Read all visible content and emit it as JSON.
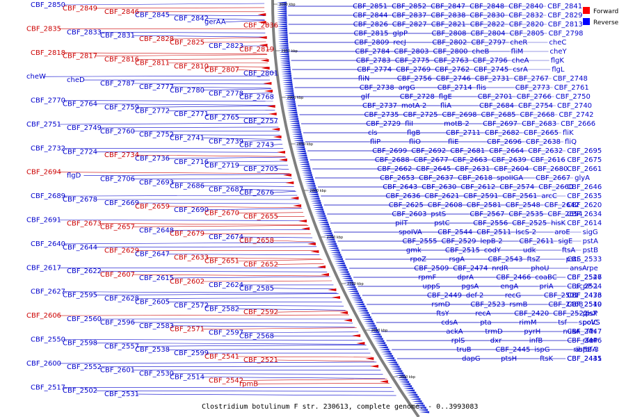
{
  "caption": "Clostridium botulinum F str. 230613, complete genome. - 0..3993083",
  "legend": [
    {
      "label": "Forward",
      "color": "#ff0000"
    },
    {
      "label": "Reverse",
      "color": "#0000ff"
    }
  ],
  "colors": {
    "forward": "#cc0000",
    "reverse": "#0000cc",
    "backbone": "#7f7f7f"
  },
  "ticks": [
    "3000 kbp",
    "2950 kbp",
    "2900 kbp",
    "2850 kbp",
    "2800 kbp",
    "2750 kbp",
    "2700 kbp",
    "2650 kbp",
    "2600 kbp"
  ],
  "left_labels": [
    [
      "CBF_2850",
      "r"
    ],
    [
      "CBF_2849",
      "f"
    ],
    [
      "CBF_2846",
      "f"
    ],
    [
      "CBF_2845",
      "r"
    ],
    [
      "CBF_2842",
      "r"
    ],
    [
      "gerAA",
      "r"
    ],
    [
      "CBF_2836",
      "f"
    ],
    [
      "CBF_2835",
      "f"
    ],
    [
      "CBF_2833",
      "r"
    ],
    [
      "CBF_2831",
      "r"
    ],
    [
      "CBF_2828",
      "f"
    ],
    [
      "CBF_2825",
      "f"
    ],
    [
      "CBF_2823",
      "r"
    ],
    [
      "CBF_2819",
      "f"
    ],
    [
      "CBF_2818",
      "f"
    ],
    [
      "CBF_2817",
      "f"
    ],
    [
      "CBF_2816",
      "f"
    ],
    [
      "CBF_2811",
      "f"
    ],
    [
      "CBF_2810",
      "f"
    ],
    [
      "CBF_2807",
      "f"
    ],
    [
      "CBF_2801",
      "r"
    ],
    [
      "cheW",
      "r"
    ],
    [
      "cheD",
      "r"
    ],
    [
      "CBF_2787",
      "r"
    ],
    [
      "CBF_2777",
      "r"
    ],
    [
      "CBF_2780",
      "r"
    ],
    [
      "CBF_2778",
      "r"
    ],
    [
      "CBF_2768",
      "r"
    ],
    [
      "CBF_2770",
      "r"
    ],
    [
      "CBF_2764",
      "r"
    ],
    [
      "CBF_2759",
      "r"
    ],
    [
      "CBF_2772",
      "r"
    ],
    [
      "CBF_2771",
      "r"
    ],
    [
      "CBF_2765",
      "r"
    ],
    [
      "CBF_2757",
      "r"
    ],
    [
      "CBF_2751",
      "r"
    ],
    [
      "CBF_2749",
      "r"
    ],
    [
      "CBF_2760",
      "r"
    ],
    [
      "CBF_2752",
      "r"
    ],
    [
      "CBF_2741",
      "r"
    ],
    [
      "CBF_2739",
      "r"
    ],
    [
      "CBF_2743",
      "r"
    ],
    [
      "CBF_2732",
      "r"
    ],
    [
      "CBF_2724",
      "r"
    ],
    [
      "CBF_2734",
      "f"
    ],
    [
      "CBF_2736",
      "r"
    ],
    [
      "CBF_2716",
      "r"
    ],
    [
      "CBF_2719",
      "r"
    ],
    [
      "CBF_2705",
      "r"
    ],
    [
      "CBF_2694",
      "f"
    ],
    [
      "flgD",
      "r"
    ],
    [
      "CBF_2706",
      "r"
    ],
    [
      "CBF_2693",
      "r"
    ],
    [
      "CBF_2686",
      "r"
    ],
    [
      "CBF_2687",
      "r"
    ],
    [
      "CBF_2676",
      "r"
    ],
    [
      "CBF_2689",
      "r"
    ],
    [
      "CBF_2678",
      "r"
    ],
    [
      "CBF_2669",
      "r"
    ],
    [
      "CBF_2659",
      "f"
    ],
    [
      "CBF_2690",
      "r"
    ],
    [
      "CBF_2670",
      "f"
    ],
    [
      "CBF_2655",
      "f"
    ],
    [
      "CBF_2691",
      "r"
    ],
    [
      "CBF_2673",
      "f"
    ],
    [
      "CBF_2657",
      "f"
    ],
    [
      "CBF_2648",
      "r"
    ],
    [
      "CBF_2679",
      "f"
    ],
    [
      "CBF_2674",
      "r"
    ],
    [
      "CBF_2658",
      "f"
    ],
    [
      "CBF_2640",
      "r"
    ],
    [
      "CBF_2644",
      "r"
    ],
    [
      "CBF_2629",
      "f"
    ],
    [
      "CBF_2647",
      "r"
    ],
    [
      "CBF_2633",
      "f"
    ],
    [
      "CBF_2651",
      "f"
    ],
    [
      "CBF_2652",
      "f"
    ],
    [
      "CBF_2617",
      "r"
    ],
    [
      "CBF_2622",
      "r"
    ],
    [
      "CBF_2607",
      "f"
    ],
    [
      "CBF_2615",
      "r"
    ],
    [
      "CBF_2602",
      "f"
    ],
    [
      "CBF_2624",
      "r"
    ],
    [
      "CBF_2585",
      "r"
    ],
    [
      "CBF_2627",
      "r"
    ],
    [
      "CBF_2595",
      "r"
    ],
    [
      "CBF_2628",
      "r"
    ],
    [
      "CBF_2605",
      "r"
    ],
    [
      "CBF_2572",
      "r"
    ],
    [
      "CBF_2582",
      "r"
    ],
    [
      "CBF_2592",
      "f"
    ],
    [
      "CBF_2606",
      "f"
    ],
    [
      "CBF_2560",
      "r"
    ],
    [
      "CBF_2596",
      "r"
    ],
    [
      "CBF_2583",
      "r"
    ],
    [
      "CBF_2571",
      "f"
    ],
    [
      "CBF_2597",
      "r"
    ],
    [
      "CBF_2568",
      "r"
    ],
    [
      "CBF_2550",
      "r"
    ],
    [
      "CBF_2598",
      "r"
    ],
    [
      "CBF_2557",
      "r"
    ],
    [
      "CBF_2538",
      "r"
    ],
    [
      "CBF_2599",
      "r"
    ],
    [
      "CBF_2541",
      "f"
    ],
    [
      "CBF_2521",
      "f"
    ],
    [
      "CBF_2600",
      "r"
    ],
    [
      "CBF_2552",
      "r"
    ],
    [
      "CBF_2601",
      "r"
    ],
    [
      "CBF_2530",
      "r"
    ],
    [
      "CBF_2514",
      "r"
    ],
    [
      "CBF_2542",
      "f"
    ],
    [
      "rpmB",
      "f"
    ],
    [
      "CBF_2517",
      "r"
    ],
    [
      "CBF_2502",
      "r"
    ],
    [
      "CBF_2531",
      "r"
    ]
  ],
  "right_labels": [
    "CBF_2851",
    "CBF_2852",
    "CBF_2847",
    "CBF_2848",
    "CBF_2840",
    "CBF_2841",
    "CBF_2844",
    "CBF_2837",
    "CBF_2838",
    "CBF_2830",
    "CBF_2832",
    "CBF_2829",
    "CBF_2826",
    "CBF_2827",
    "CBF_2821",
    "CBF_2822",
    "CBF_2820",
    "CBF_2813",
    "CBF_2815",
    "glpP",
    "CBF_2808",
    "CBF_2804",
    "CBF_2805",
    "CBF_2798",
    "CBF_2809",
    "recJ",
    "CBF_2802",
    "CBF_2797",
    "cheR",
    "cheC",
    "CBF_2784",
    "CBF_2803",
    "CBF_2800",
    "cheB",
    "fliM",
    "cheY",
    "CBF_2783",
    "CBF_2775",
    "CBF_2763",
    "CBF_2796",
    "cheA",
    "flgK",
    "CBF_2774",
    "CBF_2769",
    "CBF_2762",
    "CBF_2745",
    "csrA",
    "flgL",
    "fliN",
    "CBF_2756",
    "CBF_2746",
    "CBF_2731",
    "CBF_2767",
    "CBF_2748",
    "CBF_2738",
    "argG",
    "CBF_2714",
    "flis",
    "CBF_2773",
    "CBF_2761",
    "glf",
    "CBF_2728",
    "flgE",
    "CBF_2701",
    "CBF_2766",
    "CBF_2750",
    "CBF_2737",
    "motA-2",
    "fliA",
    "CBF_2684",
    "CBF_2754",
    "CBF_2740",
    "CBF_2735",
    "CBF_2725",
    "CBF_2698",
    "CBF_2685",
    "CBF_2668",
    "CBF_2742",
    "CBF_2729",
    "fliI",
    "motB-2",
    "CBF_2697",
    "CBF_2683",
    "CBF_2666",
    "cls",
    "flgB",
    "CBF_2711",
    "CBF_2682",
    "CBF_2665",
    "fliK",
    "fliP",
    "fliO",
    "fliE",
    "CBF_2696",
    "CBF_2638",
    "fliQ",
    "CBF_2699",
    "CBF_2692",
    "CBF_2681",
    "CBF_2664",
    "CBF_2632",
    "CBF_2695",
    "CBF_2688",
    "CBF_2677",
    "CBF_2663",
    "CBF_2639",
    "CBF_2616",
    "CBF_2675",
    "CBF_2662",
    "CBF_2645",
    "CBF_2631",
    "CBF_2604",
    "CBF_2680",
    "CBF_2661",
    "CBF_2653",
    "CBF_2637",
    "CBF_2618",
    "spoIIGA",
    "CBF_2667",
    "glyA",
    "CBF_2643",
    "CBF_2630",
    "CBF_2612",
    "CBF_2574",
    "CBF_2660",
    "CBF_2646",
    "CBF_2636",
    "CBF_2621",
    "CBF_2591",
    "CBF_2561",
    "arcC",
    "CBF_2635",
    "CBF_2625",
    "CBF_2608",
    "CBF_2581",
    "CBF_2548",
    "CBF_2642",
    "CBF_2620",
    "CBF_2603",
    "pstS",
    "CBF_2567",
    "CBF_2535",
    "CBF_2654",
    "CBF_2634",
    "pilT",
    "pstC",
    "CBF_2556",
    "CBF_2525",
    "hisK",
    "CBF_2614",
    "spoIVA",
    "CBF_2544",
    "CBF_2511",
    "lscS-2",
    "aroE",
    "sigG",
    "CBF_2555",
    "CBF_2529",
    "lepB-2",
    "CBF_2611",
    "sigE",
    "pstA",
    "gmk",
    "CBF_2515",
    "codY",
    "udk",
    "ftsA",
    "pstB",
    "rpoZ",
    "rsgA",
    "CBF_2543",
    "ftsZ",
    "pstS",
    "CBF_2533",
    "CBF_2509",
    "CBF_2474",
    "nrdR",
    "phoU",
    "ansA",
    "rpe",
    "rpmF",
    "dprA",
    "CBF_2466",
    "coaBC",
    "CBF_2547",
    "CBF_2526",
    "uppS",
    "pgsA",
    "engA",
    "priA",
    "CBF_2524",
    "acpP-1",
    "CBF_2449",
    "def-2",
    "recG",
    "CBF_2501",
    "CBF_2473",
    "CBF_2436",
    "rsmD",
    "CBF_2523",
    "rsmB",
    "CBF_2468",
    "CBF_2540",
    "CBF_2519",
    "ftsY",
    "recA",
    "CBF_2420",
    "CBF_2522",
    "plsX",
    "rpsP",
    "cdsA",
    "pta",
    "rimM",
    "tsf",
    "polC",
    "spoVS",
    "ackA",
    "trmD",
    "pyrH",
    "nusA",
    "CBF_2447",
    "ffh",
    "rplS",
    "dxr",
    "infB",
    "CBF_2446",
    "frr",
    "rseP",
    "truB",
    "CBF_2445",
    "ispG",
    "ribF",
    "aspB-3",
    "rbfA",
    "dapG",
    "ptsH",
    "ftsK",
    "CBF_2441",
    "CBF_2435"
  ]
}
